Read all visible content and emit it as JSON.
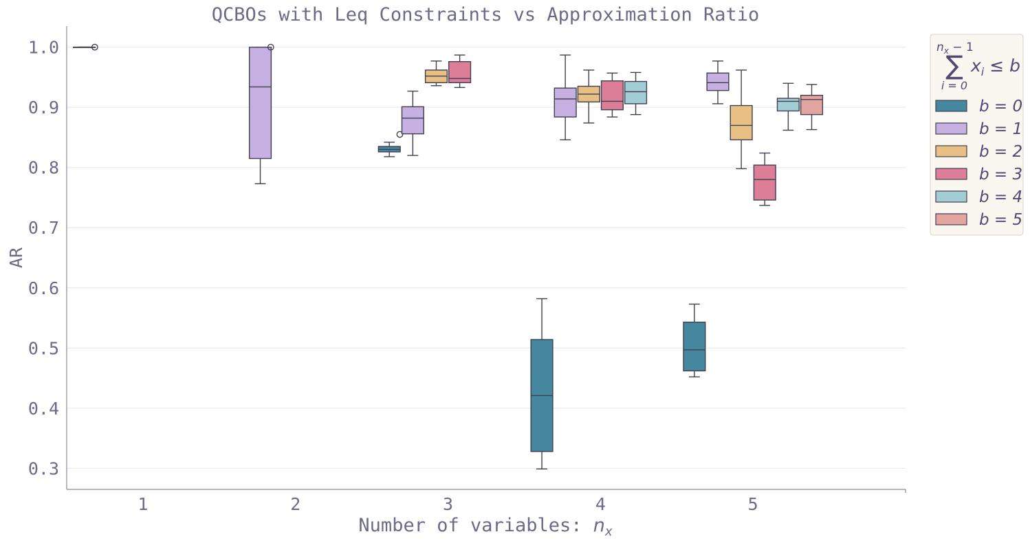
{
  "chart_data": {
    "type": "box",
    "title": "QCBOs with Leq Constraints vs Approximation Ratio",
    "xlabel_text": "Number of variables: ",
    "xlabel_math_base": "n",
    "xlabel_math_sub": "x",
    "ylabel": "AR",
    "categories": [
      "1",
      "2",
      "3",
      "4",
      "5"
    ],
    "y_ticks": [
      "0.3",
      "0.4",
      "0.5",
      "0.6",
      "0.7",
      "0.8",
      "0.9",
      "1.0"
    ],
    "ylim": [
      0.265,
      1.035
    ],
    "grid": "horizontal",
    "legend": {
      "placement": "outside-right",
      "title": {
        "sum_upper": "n",
        "sum_upper_sub": "x",
        "sum_upper_rest": " − 1",
        "sum_symbol": "∑",
        "sum_lower": "i = 0",
        "expr": "x",
        "expr_sub": "i",
        "expr_rest": " ≤ b"
      }
    },
    "series": [
      {
        "name": "b = 0",
        "color": "#45879f",
        "boxes": [
          {
            "x": "1",
            "min": 1.0,
            "q1": 1.0,
            "median": 1.0,
            "q3": 1.0,
            "max": 1.0,
            "outliers": [
              1.0
            ]
          },
          {
            "x": "3",
            "min": 0.818,
            "q1": 0.826,
            "median": 0.83,
            "q3": 0.835,
            "max": 0.842,
            "outliers": [
              0.855
            ]
          },
          {
            "x": "4",
            "min": 0.299,
            "q1": 0.328,
            "median": 0.421,
            "q3": 0.514,
            "max": 0.582,
            "outliers": []
          },
          {
            "x": "5",
            "min": 0.452,
            "q1": 0.462,
            "median": 0.497,
            "q3": 0.543,
            "max": 0.573,
            "outliers": []
          }
        ]
      },
      {
        "name": "b = 1",
        "color": "#c5b0e1",
        "boxes": [
          {
            "x": "2",
            "min": 0.773,
            "q1": 0.815,
            "median": 0.934,
            "q3": 1.0,
            "max": 1.0,
            "outliers": [
              1.0
            ]
          },
          {
            "x": "3",
            "min": 0.82,
            "q1": 0.856,
            "median": 0.882,
            "q3": 0.901,
            "max": 0.927,
            "outliers": []
          },
          {
            "x": "4",
            "min": 0.846,
            "q1": 0.884,
            "median": 0.914,
            "q3": 0.932,
            "max": 0.987,
            "outliers": []
          },
          {
            "x": "5",
            "min": 0.906,
            "q1": 0.928,
            "median": 0.941,
            "q3": 0.957,
            "max": 0.977,
            "outliers": []
          }
        ]
      },
      {
        "name": "b = 2",
        "color": "#e8bf84",
        "boxes": [
          {
            "x": "3",
            "min": 0.936,
            "q1": 0.941,
            "median": 0.952,
            "q3": 0.962,
            "max": 0.977,
            "outliers": []
          },
          {
            "x": "4",
            "min": 0.874,
            "q1": 0.909,
            "median": 0.922,
            "q3": 0.935,
            "max": 0.962,
            "outliers": []
          },
          {
            "x": "5",
            "min": 0.798,
            "q1": 0.846,
            "median": 0.87,
            "q3": 0.903,
            "max": 0.962,
            "outliers": []
          }
        ]
      },
      {
        "name": "b = 3",
        "color": "#dc7e97",
        "boxes": [
          {
            "x": "3",
            "min": 0.933,
            "q1": 0.941,
            "median": 0.948,
            "q3": 0.976,
            "max": 0.987,
            "outliers": []
          },
          {
            "x": "4",
            "min": 0.884,
            "q1": 0.896,
            "median": 0.91,
            "q3": 0.944,
            "max": 0.957,
            "outliers": []
          },
          {
            "x": "5",
            "min": 0.737,
            "q1": 0.746,
            "median": 0.78,
            "q3": 0.804,
            "max": 0.824,
            "outliers": []
          }
        ]
      },
      {
        "name": "b = 4",
        "color": "#a3cdd5",
        "boxes": [
          {
            "x": "4",
            "min": 0.888,
            "q1": 0.906,
            "median": 0.926,
            "q3": 0.943,
            "max": 0.958,
            "outliers": []
          },
          {
            "x": "5",
            "min": 0.862,
            "q1": 0.894,
            "median": 0.91,
            "q3": 0.915,
            "max": 0.94,
            "outliers": []
          }
        ]
      },
      {
        "name": "b = 5",
        "color": "#e2a5a0",
        "boxes": [
          {
            "x": "5",
            "min": 0.863,
            "q1": 0.888,
            "median": 0.913,
            "q3": 0.92,
            "max": 0.938,
            "outliers": []
          }
        ]
      }
    ]
  }
}
